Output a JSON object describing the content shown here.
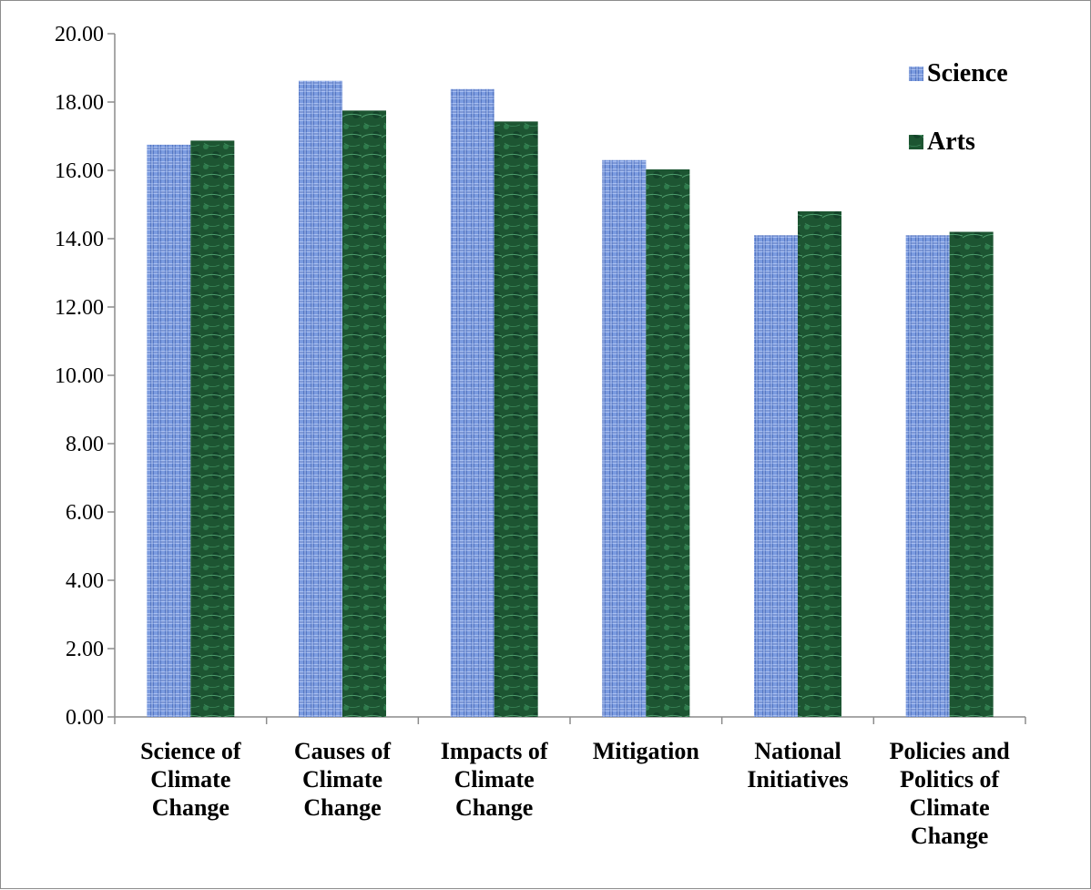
{
  "chart_data": {
    "type": "bar",
    "categories": [
      [
        "Science of",
        "Climate",
        "Change"
      ],
      [
        "Causes of",
        "Climate",
        "Change"
      ],
      [
        "Impacts of",
        "Climate",
        "Change"
      ],
      [
        "Mitigation"
      ],
      [
        "National",
        "Initiatives"
      ],
      [
        "Policies and",
        "Politics of",
        "Climate",
        "Change"
      ]
    ],
    "series": [
      {
        "name": "Science",
        "values": [
          16.75,
          18.62,
          18.38,
          16.3,
          14.1,
          14.1
        ],
        "color": "#6b8ed6"
      },
      {
        "name": "Arts",
        "values": [
          16.87,
          17.75,
          17.43,
          16.03,
          14.8,
          14.2
        ],
        "color": "#1f5a34"
      }
    ],
    "ylim": [
      0,
      20
    ],
    "yticks": [
      "0.00",
      "2.00",
      "4.00",
      "6.00",
      "8.00",
      "10.00",
      "12.00",
      "14.00",
      "16.00",
      "18.00",
      "20.00"
    ],
    "legend_position": "top-right",
    "grid": false
  }
}
